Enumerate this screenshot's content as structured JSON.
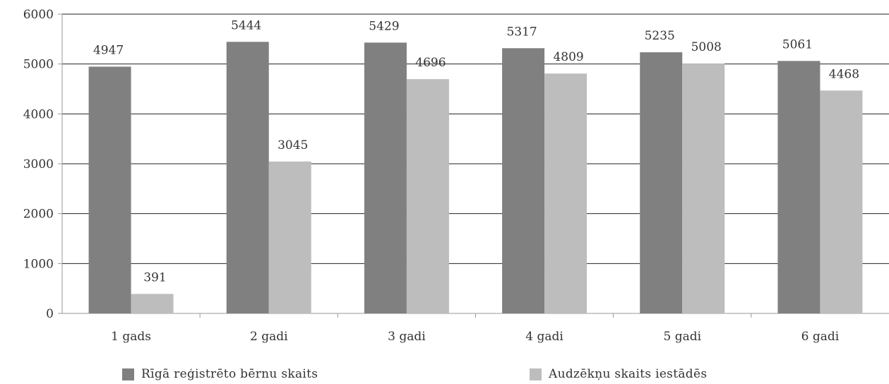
{
  "chart_data": {
    "type": "bar",
    "categories": [
      "1 gads",
      "2 gadi",
      "3 gadi",
      "4 gadi",
      "5 gadi",
      "6 gadi"
    ],
    "series": [
      {
        "name": "Rīgā reģistrēto bērnu skaits",
        "color": "#808080",
        "values": [
          4947,
          5444,
          5429,
          5317,
          5235,
          5061
        ]
      },
      {
        "name": "Audzēkņu skaits iestādēs",
        "color": "#bdbdbd",
        "values": [
          391,
          3045,
          4696,
          4809,
          5008,
          4468
        ]
      }
    ],
    "y_ticks": [
      "0",
      "1000",
      "2000",
      "3000",
      "4000",
      "5000",
      "6000"
    ],
    "ylim": [
      0,
      6000
    ],
    "grid": true,
    "legend_position": "bottom"
  }
}
